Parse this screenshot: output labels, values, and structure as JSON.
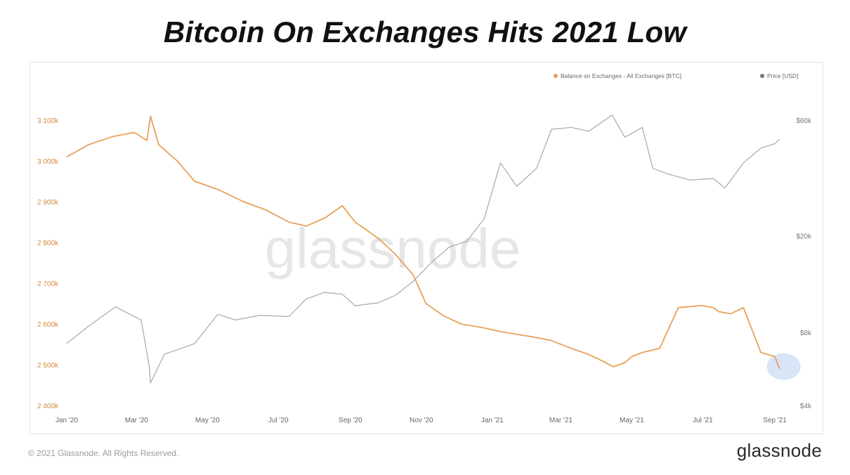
{
  "title": "Bitcoin On Exchanges Hits 2021 Low",
  "watermark": "glassnode",
  "footer": {
    "copyright": "© 2021 Glassnode. All Rights Reserved.",
    "brand": "glassnode"
  },
  "colors": {
    "balance": "#e8a058",
    "price": "#a8a8a8",
    "highlight": "#b9cdf0"
  },
  "chart_data": {
    "type": "line",
    "x_ticks": [
      "Jan '20",
      "Mar '20",
      "May '20",
      "Jul '20",
      "Sep '20",
      "Nov '20",
      "Jan '21",
      "Mar '21",
      "May '21",
      "Jul '21",
      "Sep '21"
    ],
    "y_left": {
      "ticks": [
        "3 100k",
        "3 000k",
        "2 900k",
        "2 800k",
        "2 700k",
        "2 600k",
        "2 500k",
        "2 400k"
      ],
      "tick_values": [
        3100000,
        3000000,
        2900000,
        2800000,
        2700000,
        2600000,
        2500000,
        2400000
      ],
      "range": [
        2400000,
        3100000
      ]
    },
    "y_right": {
      "scale": "log",
      "ticks": [
        "$60k",
        "$20k",
        "$8k",
        "$4k"
      ],
      "tick_values": [
        60000,
        20000,
        8000,
        4000
      ],
      "range": [
        4000,
        60000
      ]
    },
    "legend": {
      "position": "top-right",
      "entries": [
        "Balance on Exchanges - All Exchanges [BTC]",
        "Price [USD]"
      ]
    },
    "grid": false,
    "annotation": "circle highlighting latest balance low (Sep '21)",
    "series": [
      {
        "name": "Balance on Exchanges - All Exchanges [BTC]",
        "axis": "left",
        "x": [
          "2020-01-01",
          "2020-01-20",
          "2020-02-10",
          "2020-02-28",
          "2020-03-10",
          "2020-03-13",
          "2020-03-20",
          "2020-04-05",
          "2020-04-20",
          "2020-05-10",
          "2020-06-01",
          "2020-06-20",
          "2020-07-10",
          "2020-07-25",
          "2020-08-10",
          "2020-08-25",
          "2020-09-05",
          "2020-09-25",
          "2020-10-10",
          "2020-10-25",
          "2020-11-05",
          "2020-11-20",
          "2020-12-05",
          "2020-12-25",
          "2021-01-10",
          "2021-02-01",
          "2021-02-20",
          "2021-03-10",
          "2021-03-25",
          "2021-04-05",
          "2021-04-15",
          "2021-04-25",
          "2021-05-01",
          "2021-05-10",
          "2021-05-25",
          "2021-06-10",
          "2021-06-30",
          "2021-07-10",
          "2021-07-15",
          "2021-07-25",
          "2021-08-05",
          "2021-08-20",
          "2021-09-01",
          "2021-09-05"
        ],
        "y": [
          3010000,
          3040000,
          3060000,
          3070000,
          3050000,
          3110000,
          3040000,
          3000000,
          2950000,
          2930000,
          2900000,
          2880000,
          2850000,
          2840000,
          2860000,
          2890000,
          2850000,
          2810000,
          2770000,
          2720000,
          2650000,
          2620000,
          2600000,
          2590000,
          2580000,
          2570000,
          2560000,
          2540000,
          2525000,
          2510000,
          2495000,
          2505000,
          2520000,
          2530000,
          2540000,
          2640000,
          2645000,
          2640000,
          2630000,
          2625000,
          2640000,
          2530000,
          2520000,
          2490000
        ]
      },
      {
        "name": "Price [USD]",
        "axis": "right",
        "x": [
          "2020-01-01",
          "2020-01-20",
          "2020-02-12",
          "2020-03-05",
          "2020-03-12",
          "2020-03-13",
          "2020-03-25",
          "2020-04-20",
          "2020-05-10",
          "2020-05-25",
          "2020-06-15",
          "2020-07-10",
          "2020-07-25",
          "2020-08-10",
          "2020-08-25",
          "2020-09-05",
          "2020-09-25",
          "2020-10-10",
          "2020-10-25",
          "2020-11-10",
          "2020-11-25",
          "2020-12-10",
          "2020-12-25",
          "2021-01-08",
          "2021-01-22",
          "2021-02-08",
          "2021-02-21",
          "2021-03-10",
          "2021-03-25",
          "2021-04-14",
          "2021-04-25",
          "2021-05-10",
          "2021-05-19",
          "2021-06-01",
          "2021-06-20",
          "2021-07-10",
          "2021-07-20",
          "2021-08-05",
          "2021-08-20",
          "2021-09-01",
          "2021-09-05"
        ],
        "y": [
          7200,
          8500,
          10200,
          9000,
          5800,
          4950,
          6500,
          7200,
          9500,
          9000,
          9400,
          9300,
          11000,
          11700,
          11500,
          10300,
          10600,
          11400,
          13000,
          15600,
          18000,
          19000,
          23500,
          40000,
          32000,
          38000,
          55000,
          56000,
          54000,
          63000,
          51000,
          56000,
          38000,
          36000,
          34000,
          34500,
          31500,
          40000,
          46000,
          48000,
          50000
        ]
      }
    ]
  }
}
